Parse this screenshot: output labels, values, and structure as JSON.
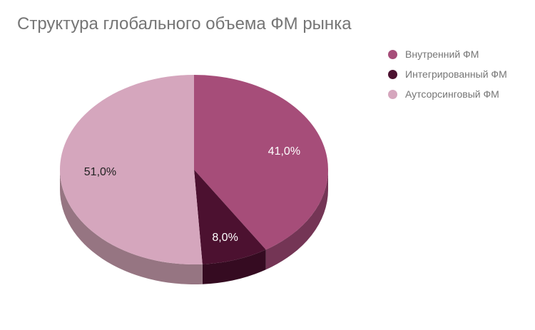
{
  "chart_data": {
    "type": "pie",
    "three_d": true,
    "title": "Структура глобального объема ФМ рынка",
    "legend_position": "right",
    "slices": [
      {
        "name": "Внутренний ФМ",
        "value": 41.0,
        "label": "41,0%",
        "color": "#a64d79",
        "side_color": "#743555",
        "label_color": "#ffffff"
      },
      {
        "name": "Интегрированный ФМ",
        "value": 8.0,
        "label": "8,0%",
        "color": "#4c1130",
        "side_color": "#350b21",
        "label_color": "#ffffff"
      },
      {
        "name": "Аутсорсинговый ФМ",
        "value": 51.0,
        "label": "51,0%",
        "color": "#d5a6bd",
        "side_color": "#967582",
        "label_color": "#222222"
      }
    ]
  }
}
